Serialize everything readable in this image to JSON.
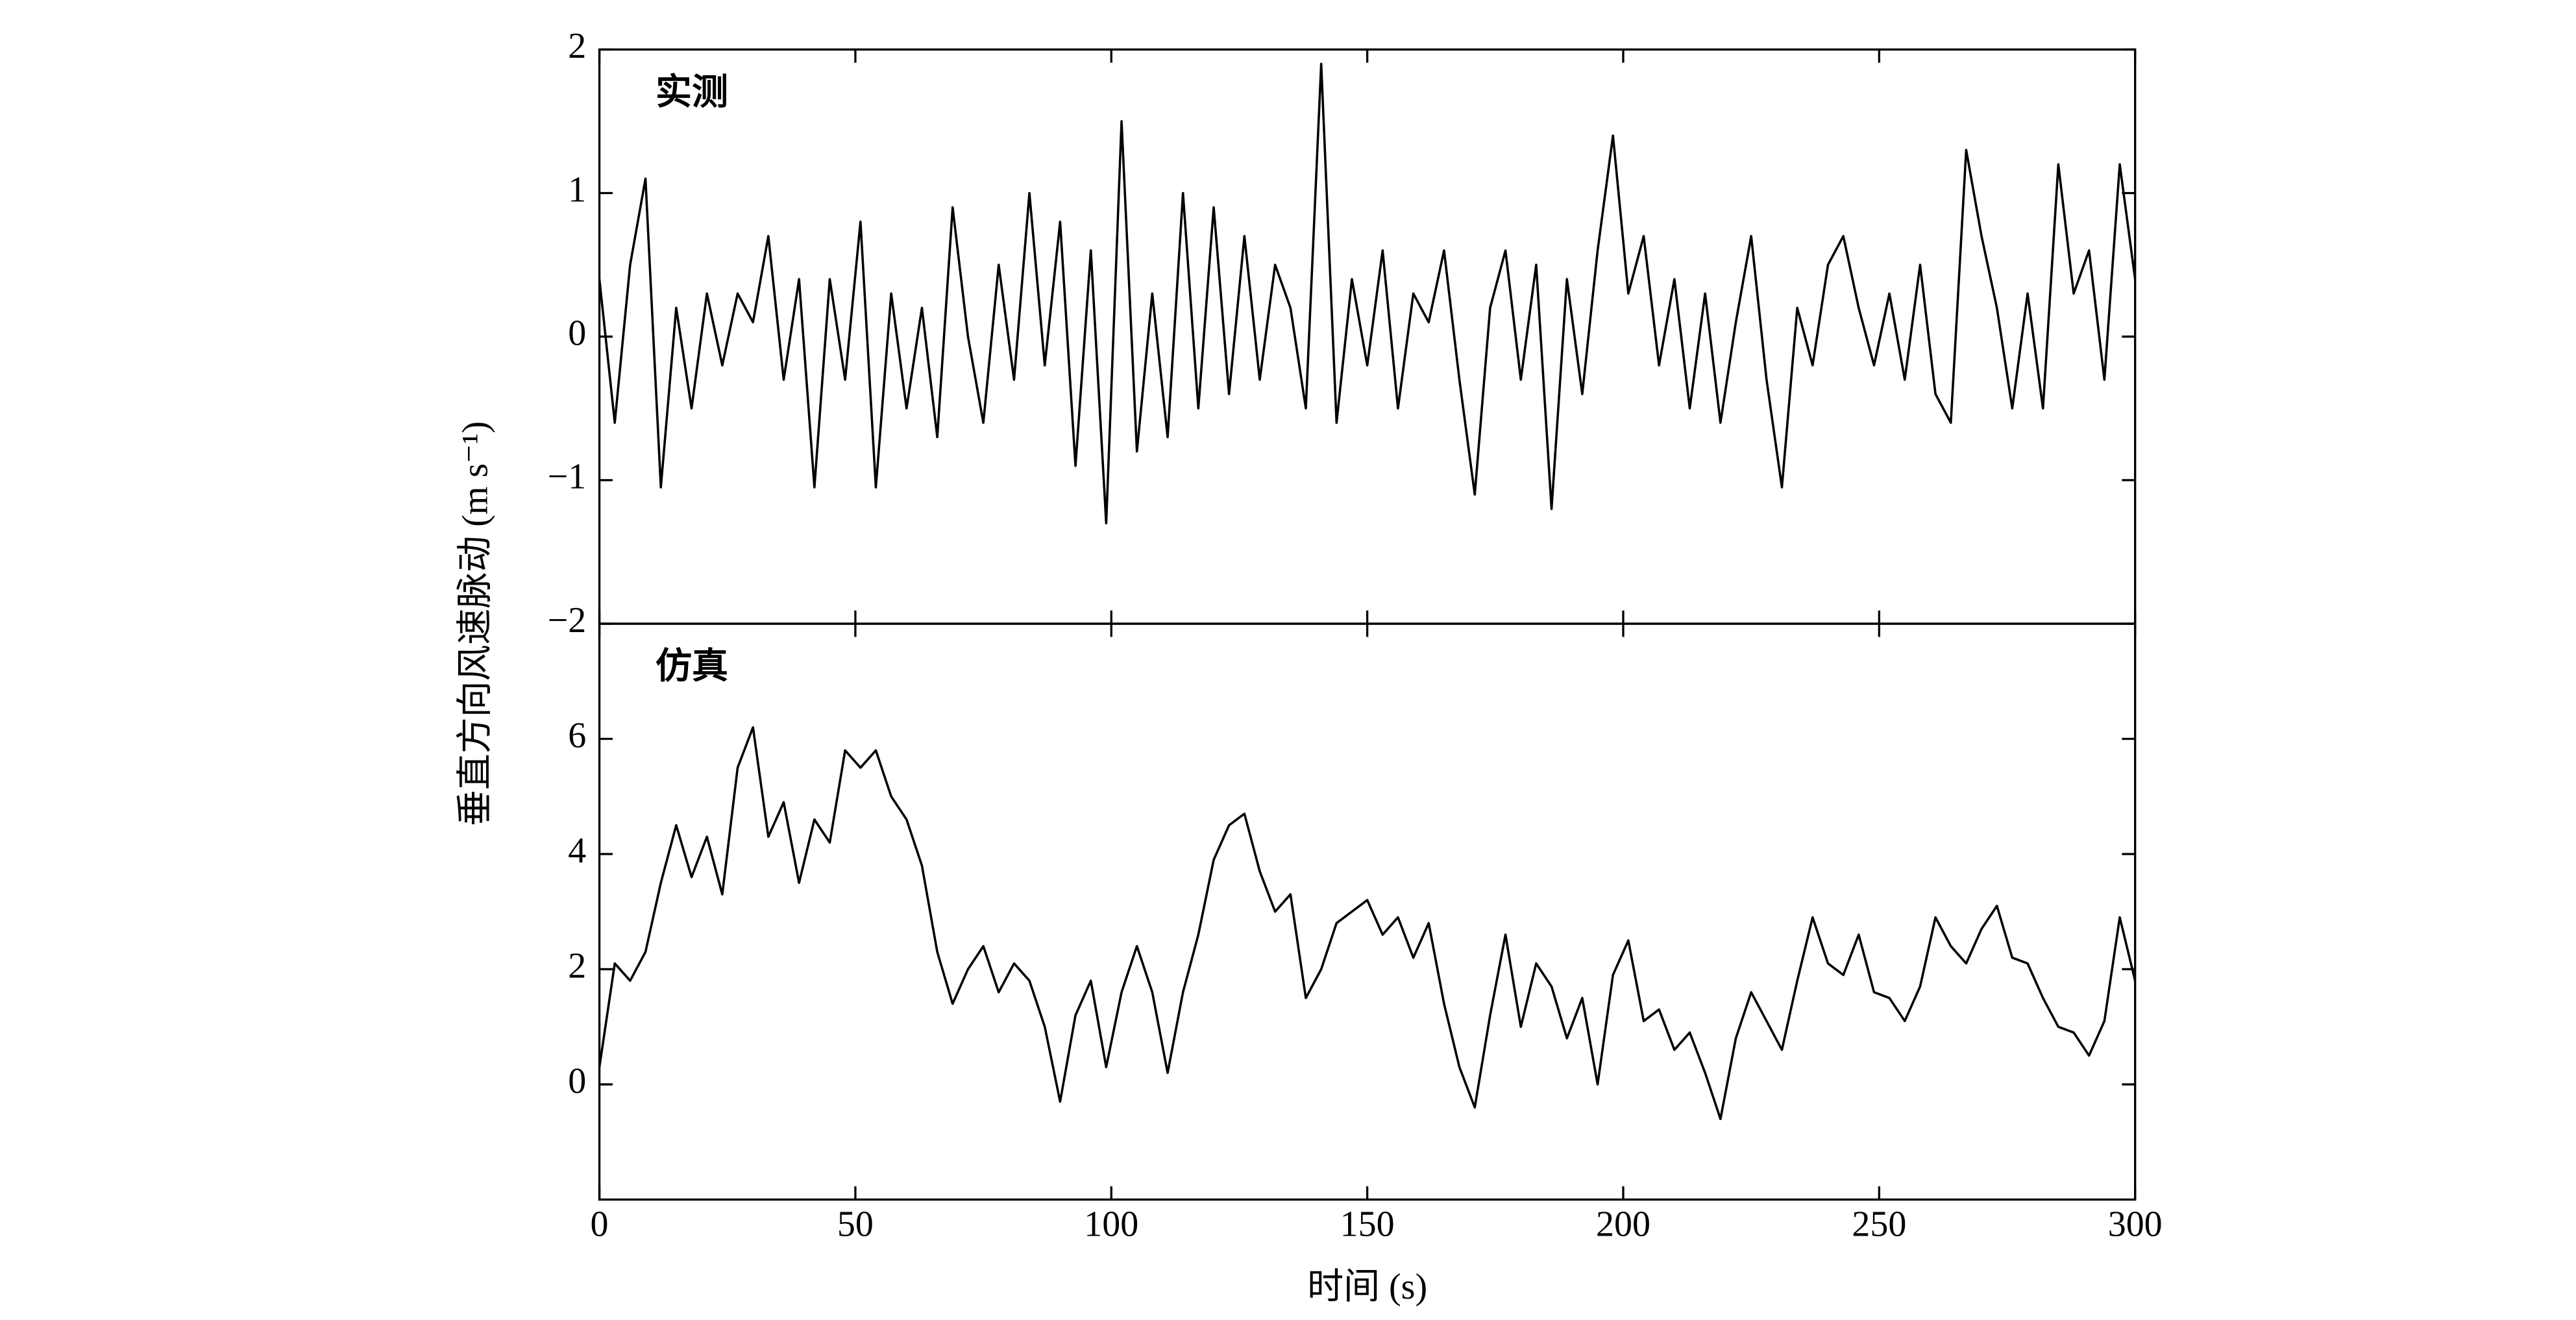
{
  "chart_data": [
    {
      "type": "line",
      "annotation": "实测",
      "ylabel": "垂直方向风速脉动 (m s⁻¹)",
      "xlim": [
        0,
        300
      ],
      "xticks": [
        0,
        50,
        100,
        150,
        200,
        250,
        300
      ],
      "ylim": [
        -2,
        2
      ],
      "yticks": [
        {
          "value": -2,
          "label": "−2"
        },
        {
          "value": -1,
          "label": "−1"
        },
        0,
        1,
        2
      ],
      "x": [
        0,
        3,
        6,
        9,
        12,
        15,
        18,
        21,
        24,
        27,
        30,
        33,
        36,
        39,
        42,
        45,
        48,
        51,
        54,
        57,
        60,
        63,
        66,
        69,
        72,
        75,
        78,
        81,
        84,
        87,
        90,
        93,
        96,
        99,
        102,
        105,
        108,
        111,
        114,
        117,
        120,
        123,
        126,
        129,
        132,
        135,
        138,
        141,
        144,
        147,
        150,
        153,
        156,
        159,
        162,
        165,
        168,
        171,
        174,
        177,
        180,
        183,
        186,
        189,
        192,
        195,
        198,
        201,
        204,
        207,
        210,
        213,
        216,
        219,
        222,
        225,
        228,
        231,
        234,
        237,
        240,
        243,
        246,
        249,
        252,
        255,
        258,
        261,
        264,
        267,
        270,
        273,
        276,
        279,
        282,
        285,
        288,
        291,
        294,
        297,
        300
      ],
      "series": [
        {
          "color": "#000000",
          "values": [
            0.4,
            -0.6,
            0.5,
            1.1,
            -1.05,
            0.2,
            -0.5,
            0.3,
            -0.2,
            0.3,
            0.1,
            0.7,
            -0.3,
            0.4,
            -1.05,
            0.4,
            -0.3,
            0.8,
            -1.05,
            0.3,
            -0.5,
            0.2,
            -0.7,
            0.9,
            0,
            -0.6,
            0.5,
            -0.3,
            1.0,
            -0.2,
            0.8,
            -0.9,
            0.6,
            -1.3,
            1.5,
            -0.8,
            0.3,
            -0.7,
            1.0,
            -0.5,
            0.9,
            -0.4,
            0.7,
            -0.3,
            0.5,
            0.2,
            -0.5,
            1.9,
            -0.6,
            0.4,
            -0.2,
            0.6,
            -0.5,
            0.3,
            0.1,
            0.6,
            -0.3,
            -1.1,
            0.2,
            0.6,
            -0.3,
            0.5,
            -1.2,
            0.4,
            -0.4,
            0.6,
            1.4,
            0.3,
            0.7,
            -0.2,
            0.4,
            -0.5,
            0.3,
            -0.6,
            0.1,
            0.7,
            -0.3,
            -1.05,
            0.2,
            -0.2,
            0.5,
            0.7,
            0.2,
            -0.2,
            0.3,
            -0.3,
            0.5,
            -0.4,
            -0.6,
            1.3,
            0.7,
            0.2,
            -0.5,
            0.3,
            -0.5,
            1.2,
            0.3,
            0.6,
            -0.3,
            1.2,
            0.4
          ]
        }
      ]
    },
    {
      "type": "line",
      "annotation": "仿真",
      "xlabel": "时间 (s)",
      "xlim": [
        0,
        300
      ],
      "xticks": [
        0,
        50,
        100,
        150,
        200,
        250,
        300
      ],
      "ylim": [
        -2,
        8
      ],
      "yticks": [
        0,
        2,
        4,
        6
      ],
      "x": [
        0,
        3,
        6,
        9,
        12,
        15,
        18,
        21,
        24,
        27,
        30,
        33,
        36,
        39,
        42,
        45,
        48,
        51,
        54,
        57,
        60,
        63,
        66,
        69,
        72,
        75,
        78,
        81,
        84,
        87,
        90,
        93,
        96,
        99,
        102,
        105,
        108,
        111,
        114,
        117,
        120,
        123,
        126,
        129,
        132,
        135,
        138,
        141,
        144,
        147,
        150,
        153,
        156,
        159,
        162,
        165,
        168,
        171,
        174,
        177,
        180,
        183,
        186,
        189,
        192,
        195,
        198,
        201,
        204,
        207,
        210,
        213,
        216,
        219,
        222,
        225,
        228,
        231,
        234,
        237,
        240,
        243,
        246,
        249,
        252,
        255,
        258,
        261,
        264,
        267,
        270,
        273,
        276,
        279,
        282,
        285,
        288,
        291,
        294,
        297,
        300
      ],
      "series": [
        {
          "color": "#000000",
          "values": [
            0.3,
            2.1,
            1.8,
            2.3,
            3.5,
            4.5,
            3.6,
            4.3,
            3.3,
            5.5,
            6.2,
            4.3,
            4.9,
            3.5,
            4.6,
            4.2,
            5.8,
            5.5,
            5.8,
            5.0,
            4.6,
            3.8,
            2.3,
            1.4,
            2.0,
            2.4,
            1.6,
            2.1,
            1.8,
            1.0,
            -0.3,
            1.2,
            1.8,
            0.3,
            1.6,
            2.4,
            1.6,
            0.2,
            1.6,
            2.6,
            3.9,
            4.5,
            4.7,
            3.7,
            3.0,
            3.3,
            1.5,
            2.0,
            2.8,
            3.0,
            3.2,
            2.6,
            2.9,
            2.2,
            2.8,
            1.4,
            0.3,
            -0.4,
            1.2,
            2.6,
            1.0,
            2.1,
            1.7,
            0.8,
            1.5,
            0.0,
            1.9,
            2.5,
            1.1,
            1.3,
            0.6,
            0.9,
            0.2,
            -0.6,
            0.8,
            1.6,
            1.1,
            0.6,
            1.8,
            2.9,
            2.1,
            1.9,
            2.6,
            1.6,
            1.5,
            1.1,
            1.7,
            2.9,
            2.4,
            2.1,
            2.7,
            3.1,
            2.2,
            2.1,
            1.5,
            1.0,
            0.9,
            0.5,
            1.1,
            2.9,
            1.8
          ]
        }
      ]
    }
  ]
}
